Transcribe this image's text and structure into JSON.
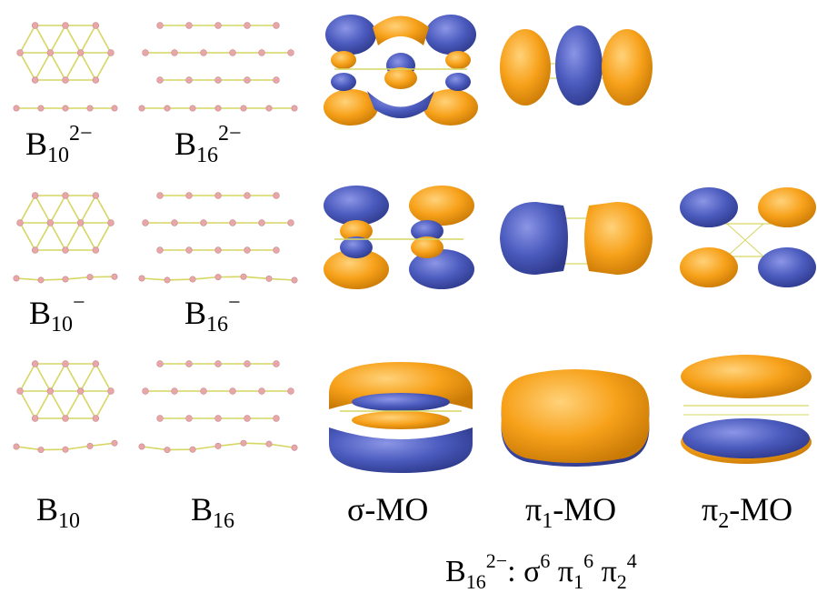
{
  "colors": {
    "positive_lobe": "#F7A11A",
    "negative_lobe": "#4B5BBE",
    "bond": "#D6D663",
    "atom": "#E8A6A8"
  },
  "rows": [
    {
      "labels": {
        "b10": {
          "base": "B",
          "sub": "10",
          "sup": "2−"
        },
        "b16": {
          "base": "B",
          "sub": "16",
          "sup": "2−"
        }
      }
    },
    {
      "labels": {
        "b10": {
          "base": "B",
          "sub": "10",
          "sup": "−"
        },
        "b16": {
          "base": "B",
          "sub": "16",
          "sup": "−"
        }
      }
    },
    {
      "labels": {
        "b10": {
          "base": "B",
          "sub": "10",
          "sup": ""
        },
        "b16": {
          "base": "B",
          "sub": "16",
          "sup": ""
        }
      }
    }
  ],
  "column_labels": {
    "sigma": "σ-MO",
    "pi1": {
      "base": "π",
      "sub": "1",
      "rest": "-MO"
    },
    "pi2": {
      "base": "π",
      "sub": "2",
      "rest": "-MO"
    }
  },
  "formula": {
    "base": "B",
    "sub": "16",
    "sup": "2−",
    "colon": ": ",
    "sigma": "σ",
    "sigma_sup": "6",
    "pi1": "π",
    "pi1_sub": "1",
    "pi1_sup": "6",
    "pi2": "π",
    "pi2_sub": "2",
    "pi2_sup": "4"
  }
}
